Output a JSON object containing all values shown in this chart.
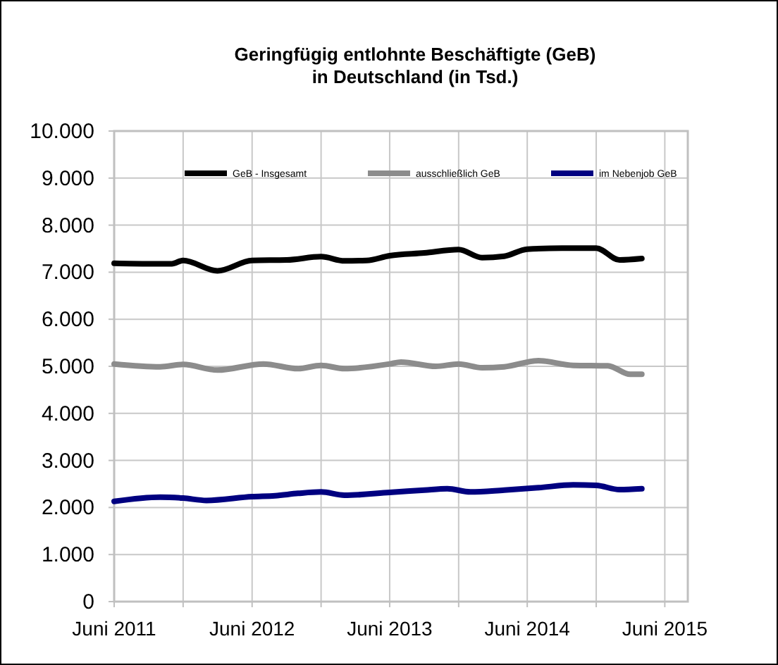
{
  "chart_data": {
    "type": "line",
    "title": "Geringfügig entlohnte Beschäftigte  (GeB) in Deutschland (in Tsd.)",
    "series": [
      {
        "name": "GeB - Insgesamt",
        "color": "#000000",
        "x": [
          "2011-06",
          "2011-09",
          "2011-11",
          "2011-12",
          "2012-03",
          "2012-06",
          "2012-09",
          "2012-12",
          "2013-02",
          "2013-04",
          "2013-06",
          "2013-09",
          "2013-12",
          "2014-02",
          "2014-04",
          "2014-06",
          "2014-09",
          "2014-12",
          "2015-02",
          "2015-04"
        ],
        "values": [
          7190,
          7180,
          7180,
          7250,
          7030,
          7250,
          7260,
          7330,
          7240,
          7250,
          7350,
          7410,
          7480,
          7310,
          7340,
          7490,
          7510,
          7510,
          7260,
          7290
        ]
      },
      {
        "name": "ausschließlich GeB",
        "color": "#8c8c8c",
        "x": [
          "2011-06",
          "2011-10",
          "2011-12",
          "2012-03",
          "2012-07",
          "2012-10",
          "2012-12",
          "2013-02",
          "2013-06",
          "2013-07",
          "2013-10",
          "2013-12",
          "2014-02",
          "2014-04",
          "2014-07",
          "2014-10",
          "2015-01",
          "2015-03",
          "2015-04"
        ],
        "values": [
          5050,
          4990,
          5040,
          4920,
          5050,
          4950,
          5020,
          4950,
          5050,
          5090,
          5000,
          5050,
          4970,
          4990,
          5120,
          5020,
          5010,
          4830,
          4830
        ]
      },
      {
        "name": "im Nebenjob GeB",
        "color": "#000080",
        "x": [
          "2011-06",
          "2011-10",
          "2011-12",
          "2012-02",
          "2012-06",
          "2012-08",
          "2012-10",
          "2012-12",
          "2013-02",
          "2013-06",
          "2013-09",
          "2013-11",
          "2014-01",
          "2014-04",
          "2014-07",
          "2014-10",
          "2014-12",
          "2015-02",
          "2015-04"
        ],
        "values": [
          2130,
          2220,
          2200,
          2150,
          2230,
          2250,
          2300,
          2330,
          2260,
          2320,
          2370,
          2400,
          2330,
          2370,
          2420,
          2480,
          2470,
          2380,
          2400
        ]
      }
    ],
    "xlim": [
      "2011-06",
      "2015-08"
    ],
    "xticks": [
      {
        "value": "2011-06",
        "label": "Juni 2011"
      },
      {
        "value": "2011-12",
        "label": null
      },
      {
        "value": "2012-06",
        "label": "Juni 2012"
      },
      {
        "value": "2012-12",
        "label": null
      },
      {
        "value": "2013-06",
        "label": "Juni 2013"
      },
      {
        "value": "2013-12",
        "label": null
      },
      {
        "value": "2014-06",
        "label": "Juni 2014"
      },
      {
        "value": "2014-12",
        "label": null
      },
      {
        "value": "2015-06",
        "label": "Juni 2015"
      }
    ],
    "ylim": [
      0,
      10000
    ],
    "yticks": [
      {
        "value": 0,
        "label": "0"
      },
      {
        "value": 1000,
        "label": "1.000"
      },
      {
        "value": 2000,
        "label": "2.000"
      },
      {
        "value": 3000,
        "label": "3.000"
      },
      {
        "value": 4000,
        "label": "4.000"
      },
      {
        "value": 5000,
        "label": "5.000"
      },
      {
        "value": 6000,
        "label": "6.000"
      },
      {
        "value": 7000,
        "label": "7.000"
      },
      {
        "value": 8000,
        "label": "8.000"
      },
      {
        "value": 9000,
        "label": "9.000"
      },
      {
        "value": 10000,
        "label": "10.000"
      }
    ],
    "grid": true,
    "legend": "top",
    "marker": "none",
    "line_style": "solid"
  }
}
